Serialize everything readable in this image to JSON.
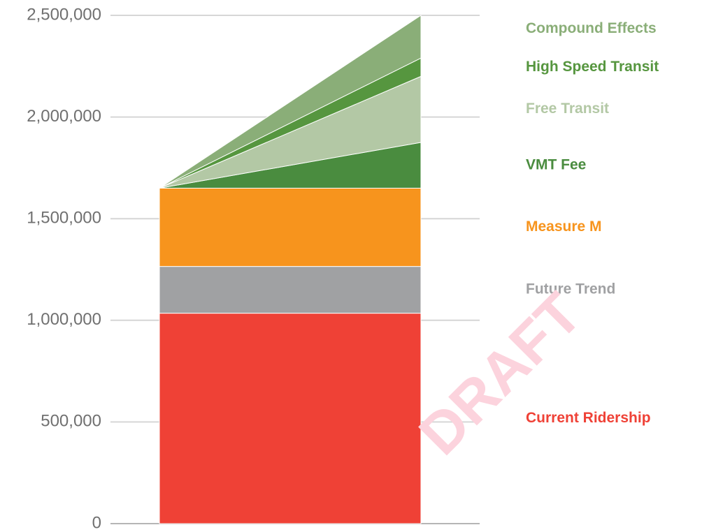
{
  "chart_data": {
    "type": "area",
    "stacked": true,
    "watermark": "DRAFT",
    "categories": [
      null,
      null
    ],
    "series": [
      {
        "name": "Current Ridership",
        "color": "#ef4136",
        "values": [
          1035000,
          1035000
        ]
      },
      {
        "name": "Future Trend",
        "color": "#a0a1a3",
        "values": [
          230000,
          230000
        ]
      },
      {
        "name": "Measure M",
        "color": "#f7941d",
        "values": [
          385000,
          385000
        ]
      },
      {
        "name": "VMT Fee",
        "color": "#4a8c3f",
        "values": [
          0,
          225000
        ]
      },
      {
        "name": "Free Transit",
        "color": "#b3c8a5",
        "values": [
          0,
          325000
        ]
      },
      {
        "name": "High Speed Transit",
        "color": "#56963f",
        "values": [
          0,
          90000
        ]
      },
      {
        "name": "Compound Effects",
        "color": "#8aae78",
        "values": [
          0,
          210000
        ]
      }
    ],
    "ylim": [
      0,
      2500000
    ],
    "yticks": [
      0,
      {
        "value": 500000,
        "label": "500,000"
      },
      {
        "value": 1000000,
        "label": "1,000,000"
      },
      {
        "value": 1500000,
        "label": "1,500,000"
      },
      {
        "value": 2000000,
        "label": "2,000,000"
      },
      {
        "value": 2500000,
        "label": "2,500,000"
      }
    ],
    "grid": true,
    "legend": "right"
  }
}
